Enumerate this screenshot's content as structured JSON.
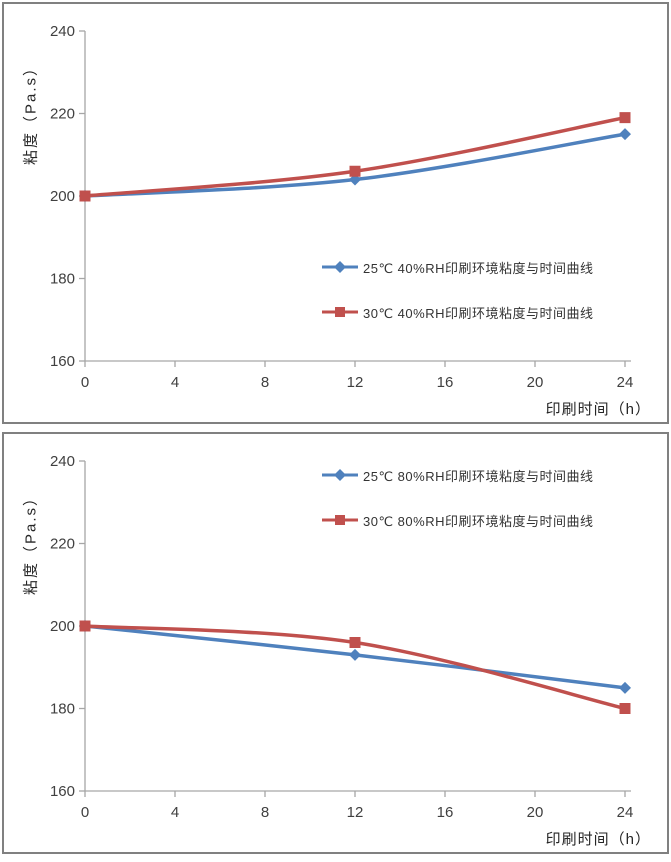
{
  "colors": {
    "series_blue": "#4F81BD",
    "series_red": "#C0504D",
    "axis_line": "#A6A6A6",
    "tick_text": "#404040",
    "title_text": "#262626",
    "panel_border": "#808080",
    "background": "#FFFFFF"
  },
  "chart_data": [
    {
      "type": "line",
      "title": "",
      "xlabel": "印刷时间（h）",
      "ylabel": "粘度（Pa.s）",
      "x": [
        0,
        12,
        24
      ],
      "x_ticks": [
        0,
        4,
        8,
        12,
        16,
        20,
        24
      ],
      "y_ticks": [
        160,
        180,
        200,
        220,
        240
      ],
      "xlim": [
        0,
        24
      ],
      "ylim": [
        160,
        240
      ],
      "grid": false,
      "legend_position": "center-right",
      "series": [
        {
          "name": "25℃ 40%RH印刷环境粘度与时间曲线",
          "color_key": "series_blue",
          "marker": "diamond",
          "values": [
            200,
            204,
            215
          ]
        },
        {
          "name": "30℃ 40%RH印刷环境粘度与时间曲线",
          "color_key": "series_red",
          "marker": "square",
          "values": [
            200,
            206,
            219
          ]
        }
      ]
    },
    {
      "type": "line",
      "title": "",
      "xlabel": "印刷时间（h）",
      "ylabel": "粘度（Pa.s）",
      "x": [
        0,
        12,
        24
      ],
      "x_ticks": [
        0,
        4,
        8,
        12,
        16,
        20,
        24
      ],
      "y_ticks": [
        160,
        180,
        200,
        220,
        240
      ],
      "xlim": [
        0,
        24
      ],
      "ylim": [
        160,
        240
      ],
      "grid": false,
      "legend_position": "top-right",
      "series": [
        {
          "name": "25℃ 80%RH印刷环境粘度与时间曲线",
          "color_key": "series_blue",
          "marker": "diamond",
          "values": [
            200,
            193,
            185
          ]
        },
        {
          "name": "30℃ 80%RH印刷环境粘度与时间曲线",
          "color_key": "series_red",
          "marker": "square",
          "values": [
            200,
            196,
            180
          ]
        }
      ]
    }
  ]
}
